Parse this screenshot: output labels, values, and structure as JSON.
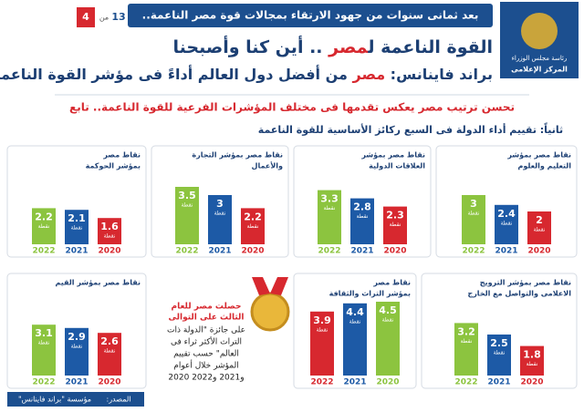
{
  "header": {
    "banner": "بعد ثمانى سنوات من جهود الارتقاء بمجالات قوة مصر الناعمة..",
    "page": "4",
    "page_of": "من",
    "page_total": "13",
    "logo_lines": [
      "رئاسة مجلس الوزراء",
      "المركز الإعلامى"
    ],
    "title_parts": [
      "القوة الناعمة ل",
      "مصر",
      " .. أين كنا وأصبحنا"
    ],
    "subtitle_parts": [
      "براند فاينانس: ",
      "مصر",
      " من أفضل دول العالم أداءً فى مؤشر القوة الناعمة"
    ],
    "tagline": "تحسن ترتيب مصر يعكس تقدمها فى مختلف المؤشرات الفرعية للقوة الناعمة.. تابع",
    "section": "ثانياً: تقييم أداء الدولة فى السبع ركائز الأساسية للقوة الناعمة"
  },
  "chart_data": [
    {
      "type": "bar",
      "title": [
        "نقاط مصر",
        "بمؤشر الحوكمة"
      ],
      "categories": [
        "2022",
        "2021",
        "2020"
      ],
      "values": [
        2.2,
        2.1,
        1.6
      ],
      "colors": [
        "#8cc43f",
        "#1d5aa6",
        "#d7282f"
      ],
      "unit": "نقطة"
    },
    {
      "type": "bar",
      "title": [
        "نقاط مصر بمؤشر التجارة",
        "والأعمال"
      ],
      "categories": [
        "2022",
        "2021",
        "2020"
      ],
      "values": [
        3.5,
        3,
        2.2
      ],
      "colors": [
        "#8cc43f",
        "#1d5aa6",
        "#d7282f"
      ],
      "unit": "نقطة"
    },
    {
      "type": "bar",
      "title": [
        "نقاط مصر بمؤشر",
        "العلاقات الدولية"
      ],
      "categories": [
        "2022",
        "2021",
        "2020"
      ],
      "values": [
        3.3,
        2.8,
        2.3
      ],
      "colors": [
        "#8cc43f",
        "#1d5aa6",
        "#d7282f"
      ],
      "unit": "نقطة"
    },
    {
      "type": "bar",
      "title": [
        "نقاط مصر بمؤشر",
        "التعليم والعلوم"
      ],
      "categories": [
        "2022",
        "2021",
        "2020"
      ],
      "values": [
        3,
        2.4,
        2
      ],
      "colors": [
        "#8cc43f",
        "#1d5aa6",
        "#d7282f"
      ],
      "unit": "نقطة"
    },
    {
      "type": "bar",
      "title": [
        "نقاط مصر بمؤشر القيم"
      ],
      "categories": [
        "2022",
        "2021",
        "2020"
      ],
      "values": [
        3.1,
        2.9,
        2.6
      ],
      "colors": [
        "#8cc43f",
        "#1d5aa6",
        "#d7282f"
      ],
      "unit": "نقطة"
    },
    {
      "type": "bar",
      "title": [
        "نقاط مصر",
        "بمؤشر التراث والثقافة"
      ],
      "categories": [
        "2022",
        "2021",
        "2020"
      ],
      "values": [
        3.9,
        4.4,
        4.5
      ],
      "colors": [
        "#d7282f",
        "#1d5aa6",
        "#8cc43f"
      ],
      "unit": "نقطة"
    },
    {
      "type": "bar",
      "title": [
        "نقاط مصر بمؤشر الترويج",
        "الاعلامى والتواصل مع الخارج"
      ],
      "categories": [
        "2022",
        "2021",
        "2020"
      ],
      "values": [
        3.2,
        2.5,
        1.8
      ],
      "colors": [
        "#8cc43f",
        "#1d5aa6",
        "#d7282f"
      ],
      "unit": "نقطة"
    }
  ],
  "award": {
    "headline": [
      "حصلت مصر للعام",
      "الثالث على التوالى"
    ],
    "body": [
      "على جائزة \"الدولة ذات",
      "التراث الأكثر ثراء فى",
      "العالم\" حسب تقييم",
      "المؤشر خلال أعوام",
      "2020 و2021 و2022"
    ]
  },
  "footer": {
    "source_label": "المصدر:",
    "source": "مؤسسة \"براند فاينانس\""
  }
}
